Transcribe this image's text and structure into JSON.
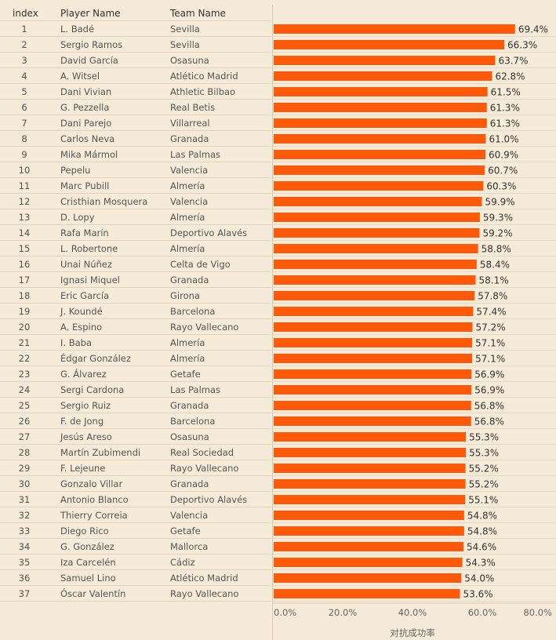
{
  "table": {
    "headers": {
      "index": "index",
      "player": "Player Name",
      "team": "Team Name"
    }
  },
  "chart_data": {
    "type": "bar",
    "orientation": "horizontal",
    "xlabel": "对抗成功率",
    "xlim": [
      0,
      0.8
    ],
    "x_ticks": [
      "0.0%",
      "20.0%",
      "40.0%",
      "60.0%",
      "80.0%"
    ],
    "bar_color": "#ff5a0a",
    "rows": [
      {
        "index": "1",
        "player": "L. Badé",
        "team": "Sevilla",
        "value": 0.694,
        "label": "69.4%"
      },
      {
        "index": "2",
        "player": "Sergio Ramos",
        "team": "Sevilla",
        "value": 0.663,
        "label": "66.3%"
      },
      {
        "index": "3",
        "player": "David García",
        "team": "Osasuna",
        "value": 0.637,
        "label": "63.7%"
      },
      {
        "index": "4",
        "player": "A. Witsel",
        "team": "Atlético Madrid",
        "value": 0.628,
        "label": "62.8%"
      },
      {
        "index": "5",
        "player": "Dani Vivian",
        "team": "Athletic Bilbao",
        "value": 0.615,
        "label": "61.5%"
      },
      {
        "index": "6",
        "player": "G. Pezzella",
        "team": "Real Betis",
        "value": 0.613,
        "label": "61.3%"
      },
      {
        "index": "7",
        "player": "Dani Parejo",
        "team": "Villarreal",
        "value": 0.613,
        "label": "61.3%"
      },
      {
        "index": "8",
        "player": "Carlos Neva",
        "team": "Granada",
        "value": 0.61,
        "label": "61.0%"
      },
      {
        "index": "9",
        "player": "Mika Mármol",
        "team": "Las Palmas",
        "value": 0.609,
        "label": "60.9%"
      },
      {
        "index": "10",
        "player": "Pepelu",
        "team": "Valencia",
        "value": 0.607,
        "label": "60.7%"
      },
      {
        "index": "11",
        "player": "Marc Pubill",
        "team": "Almería",
        "value": 0.603,
        "label": "60.3%"
      },
      {
        "index": "12",
        "player": "Cristhian Mosquera",
        "team": "Valencia",
        "value": 0.599,
        "label": "59.9%"
      },
      {
        "index": "13",
        "player": "D. Lopy",
        "team": "Almería",
        "value": 0.593,
        "label": "59.3%"
      },
      {
        "index": "14",
        "player": "Rafa Marín",
        "team": "Deportivo Alavés",
        "value": 0.592,
        "label": "59.2%"
      },
      {
        "index": "15",
        "player": "L. Robertone",
        "team": "Almería",
        "value": 0.588,
        "label": "58.8%"
      },
      {
        "index": "16",
        "player": "Unai Núñez",
        "team": "Celta de Vigo",
        "value": 0.584,
        "label": "58.4%"
      },
      {
        "index": "17",
        "player": "Ignasi Miquel",
        "team": "Granada",
        "value": 0.581,
        "label": "58.1%"
      },
      {
        "index": "18",
        "player": "Eric García",
        "team": "Girona",
        "value": 0.578,
        "label": "57.8%"
      },
      {
        "index": "19",
        "player": "J. Koundé",
        "team": "Barcelona",
        "value": 0.574,
        "label": "57.4%"
      },
      {
        "index": "20",
        "player": "A. Espino",
        "team": "Rayo Vallecano",
        "value": 0.572,
        "label": "57.2%"
      },
      {
        "index": "21",
        "player": "I. Baba",
        "team": "Almería",
        "value": 0.571,
        "label": "57.1%"
      },
      {
        "index": "22",
        "player": "Édgar González",
        "team": "Almería",
        "value": 0.571,
        "label": "57.1%"
      },
      {
        "index": "23",
        "player": "G. Álvarez",
        "team": "Getafe",
        "value": 0.569,
        "label": "56.9%"
      },
      {
        "index": "24",
        "player": "Sergi Cardona",
        "team": "Las Palmas",
        "value": 0.569,
        "label": "56.9%"
      },
      {
        "index": "25",
        "player": "Sergio Ruiz",
        "team": "Granada",
        "value": 0.568,
        "label": "56.8%"
      },
      {
        "index": "26",
        "player": "F. de Jong",
        "team": "Barcelona",
        "value": 0.568,
        "label": "56.8%"
      },
      {
        "index": "27",
        "player": "Jesús Areso",
        "team": "Osasuna",
        "value": 0.553,
        "label": "55.3%"
      },
      {
        "index": "28",
        "player": "Martín Zubimendi",
        "team": "Real Sociedad",
        "value": 0.553,
        "label": "55.3%"
      },
      {
        "index": "29",
        "player": "F. Lejeune",
        "team": "Rayo Vallecano",
        "value": 0.552,
        "label": "55.2%"
      },
      {
        "index": "30",
        "player": "Gonzalo Villar",
        "team": "Granada",
        "value": 0.552,
        "label": "55.2%"
      },
      {
        "index": "31",
        "player": "Antonio Blanco",
        "team": "Deportivo Alavés",
        "value": 0.551,
        "label": "55.1%"
      },
      {
        "index": "32",
        "player": "Thierry Correia",
        "team": "Valencia",
        "value": 0.548,
        "label": "54.8%"
      },
      {
        "index": "33",
        "player": "Diego Rico",
        "team": "Getafe",
        "value": 0.548,
        "label": "54.8%"
      },
      {
        "index": "34",
        "player": "G. González",
        "team": "Mallorca",
        "value": 0.546,
        "label": "54.6%"
      },
      {
        "index": "35",
        "player": "Iza Carcelén",
        "team": "Cádiz",
        "value": 0.543,
        "label": "54.3%"
      },
      {
        "index": "36",
        "player": "Samuel Lino",
        "team": "Atlético Madrid",
        "value": 0.54,
        "label": "54.0%"
      },
      {
        "index": "37",
        "player": "Óscar Valentín",
        "team": "Rayo Vallecano",
        "value": 0.536,
        "label": "53.6%"
      }
    ]
  }
}
